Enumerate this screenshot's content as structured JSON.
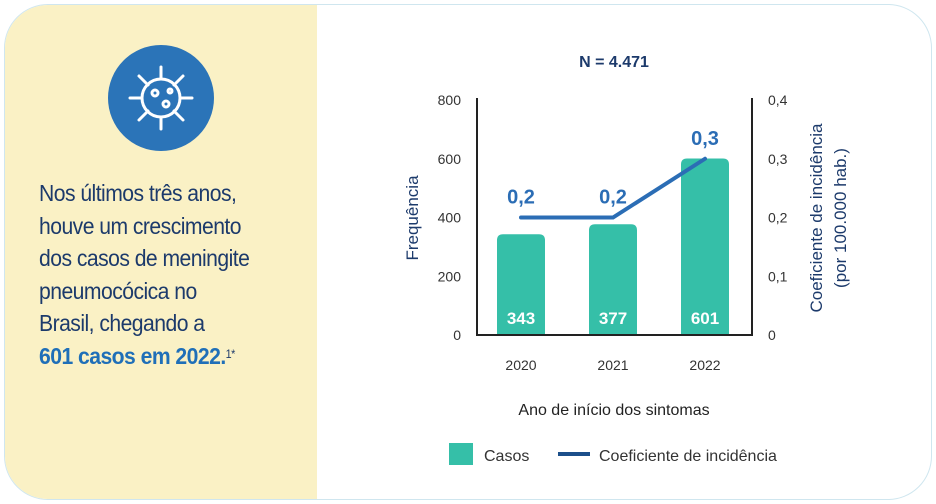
{
  "message": {
    "lines": [
      "Nos últimos três anos,",
      "houve um crescimento",
      "dos casos de meningite",
      "pneumocócica no",
      "Brasil, chegando a"
    ],
    "highlight": "601 casos em 2022.",
    "footnote": "1*"
  },
  "icon": "virus-icon",
  "colors": {
    "bar": "#35bfa8",
    "line": "#2b6db5",
    "text": "#1c3a6b",
    "panel": "#faf1c5"
  },
  "chart_data": {
    "type": "bar",
    "title": "N = 4.471",
    "categories": [
      "2020",
      "2021",
      "2022"
    ],
    "series": [
      {
        "name": "Casos",
        "type": "bar",
        "axis": "left",
        "values": [
          343,
          377,
          601
        ],
        "labels": [
          "343",
          "377",
          "601"
        ]
      },
      {
        "name": "Coeficiente de incidência",
        "type": "line",
        "axis": "right",
        "values": [
          0.2,
          0.2,
          0.3
        ],
        "labels": [
          "0,2",
          "0,2",
          "0,3"
        ]
      }
    ],
    "xlabel": "Ano de início dos sintomas",
    "ylabel": "Frequência",
    "y2label": [
      "Coeficiente de incidência",
      "(por 100.000 hab.)"
    ],
    "ylim": [
      0,
      800
    ],
    "yticks": [
      "0",
      "200",
      "400",
      "600",
      "800"
    ],
    "y2lim": [
      0,
      0.4
    ],
    "y2ticks": [
      "0",
      "0,1",
      "0,2",
      "0,3",
      "0,4"
    ],
    "legend": [
      "Casos",
      "Coeficiente de incidência"
    ],
    "legend_position": "bottom"
  }
}
